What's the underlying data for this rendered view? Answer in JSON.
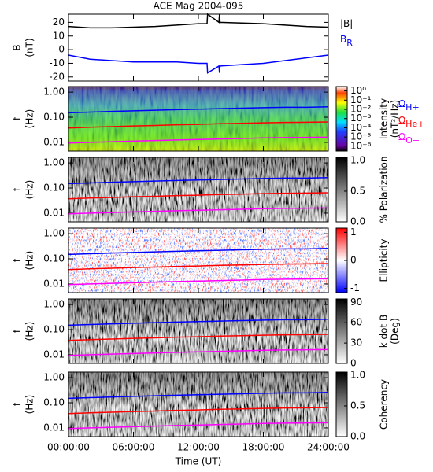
{
  "chart_data": [
    {
      "type": "line",
      "title": "ACE Mag 2004-095",
      "ylabel": "B",
      "ylabel_unit": "(nT)",
      "x": [
        0,
        2,
        4,
        6,
        8,
        10,
        12,
        12.8,
        12.85,
        13.9,
        13.95,
        14,
        16,
        18,
        20,
        22,
        24
      ],
      "xlim": [
        0,
        24
      ],
      "xticks": [
        0,
        6,
        12,
        18,
        24
      ],
      "ylim": [
        -23,
        26
      ],
      "yticks": [
        -20,
        -10,
        0,
        10,
        20
      ],
      "series": [
        {
          "name": "|B|",
          "color": "#000000",
          "values": [
            17,
            16,
            16,
            16.5,
            17,
            18,
            19,
            19,
            26,
            20,
            26,
            20,
            19.5,
            19,
            18,
            17,
            16.5
          ]
        },
        {
          "name": "B",
          "subscript": "R",
          "color": "#0000ff",
          "values": [
            -4,
            -7,
            -8,
            -9,
            -9,
            -9,
            -10,
            -10,
            -17,
            -12,
            -17,
            -12,
            -11,
            -10,
            -8,
            -6,
            -4
          ]
        }
      ]
    },
    {
      "type": "spectrogram",
      "ylabel": "f",
      "ylabel_unit": "(Hz)",
      "ylog": true,
      "ylim": [
        0.0045,
        1.67
      ],
      "yticks": [
        {
          "value": 1,
          "label": "1.00"
        },
        {
          "value": 0.1,
          "label": "0.10"
        },
        0.01
      ],
      "xlim": [
        0,
        24
      ],
      "xticks": [
        0,
        6,
        12,
        18,
        24
      ],
      "x": [
        0,
        2,
        4,
        6,
        8,
        10,
        12,
        14,
        16,
        18,
        20,
        22,
        24
      ],
      "colormap": "rainbow",
      "colorbar_label": "Intensity",
      "colorbar_unit": "(nT²/Hz)",
      "clog": true,
      "clim": [
        3e-07,
        3
      ],
      "cticks": [
        {
          "value": 1,
          "label": "10⁰"
        },
        {
          "value": 0.1,
          "label": "10⁻¹"
        },
        {
          "value": 0.01,
          "label": "10⁻²"
        },
        {
          "value": 0.001,
          "label": "10⁻³"
        },
        {
          "value": 0.0001,
          "label": "10⁻⁴"
        },
        {
          "value": 1e-05,
          "label": "10⁻⁵"
        },
        {
          "value": 1e-06,
          "label": "10⁻⁶"
        }
      ],
      "series": [
        {
          "name": "Ω",
          "subscript": "H+",
          "color": "#0000ff",
          "values": [
            0.15,
            0.16,
            0.17,
            0.18,
            0.19,
            0.2,
            0.21,
            0.22,
            0.23,
            0.24,
            0.25,
            0.25,
            0.26
          ]
        },
        {
          "name": "Ω",
          "subscript": "He+",
          "color": "#ff0000",
          "values": [
            0.037,
            0.04,
            0.042,
            0.045,
            0.047,
            0.05,
            0.052,
            0.055,
            0.057,
            0.06,
            0.062,
            0.063,
            0.065
          ]
        },
        {
          "name": "Ω",
          "subscript": "O+",
          "color": "#ff00ff",
          "values": [
            0.0094,
            0.01,
            0.0106,
            0.0112,
            0.0118,
            0.0125,
            0.013,
            0.0137,
            0.0143,
            0.015,
            0.0155,
            0.0157,
            0.016
          ]
        }
      ]
    },
    {
      "type": "spectrogram",
      "ylabel": "f",
      "ylabel_unit": "(Hz)",
      "ylog": true,
      "ylim": [
        0.0045,
        1.67
      ],
      "yticks": [
        {
          "value": 1,
          "label": "1.00"
        },
        {
          "value": 0.1,
          "label": "0.10"
        },
        0.01
      ],
      "xlim": [
        0,
        24
      ],
      "xticks": [
        0,
        6,
        12,
        18,
        24
      ],
      "x": [
        0,
        2,
        4,
        6,
        8,
        10,
        12,
        14,
        16,
        18,
        20,
        22,
        24
      ],
      "colormap": "gray",
      "colorbar_label": "% Polarization",
      "clim": [
        0,
        1.05
      ],
      "cticks": [
        {
          "value": 0,
          "label": "0.0"
        },
        0.5,
        {
          "value": 1,
          "label": "1.0"
        }
      ],
      "series": [
        {
          "color": "#0000ff",
          "values": [
            0.15,
            0.16,
            0.17,
            0.18,
            0.19,
            0.2,
            0.21,
            0.22,
            0.23,
            0.24,
            0.25,
            0.25,
            0.26
          ]
        },
        {
          "color": "#ff0000",
          "values": [
            0.037,
            0.04,
            0.042,
            0.045,
            0.047,
            0.05,
            0.052,
            0.055,
            0.057,
            0.06,
            0.062,
            0.063,
            0.065
          ]
        },
        {
          "color": "#ff00ff",
          "values": [
            0.0094,
            0.01,
            0.0106,
            0.0112,
            0.0118,
            0.0125,
            0.013,
            0.0137,
            0.0143,
            0.015,
            0.0155,
            0.0157,
            0.016
          ]
        }
      ]
    },
    {
      "type": "spectrogram",
      "ylabel": "f",
      "ylabel_unit": "(Hz)",
      "ylog": true,
      "ylim": [
        0.0045,
        1.67
      ],
      "yticks": [
        {
          "value": 1,
          "label": "1.00"
        },
        {
          "value": 0.1,
          "label": "0.10"
        },
        0.01
      ],
      "xlim": [
        0,
        24
      ],
      "xticks": [
        0,
        6,
        12,
        18,
        24
      ],
      "x": [
        0,
        2,
        4,
        6,
        8,
        10,
        12,
        14,
        16,
        18,
        20,
        22,
        24
      ],
      "colormap": "bwr",
      "colorbar_label": "Ellipticity",
      "clim": [
        -1.15,
        1.15
      ],
      "cticks": [
        1,
        0,
        -1
      ],
      "series": [
        {
          "color": "#0000ff",
          "values": [
            0.15,
            0.16,
            0.17,
            0.18,
            0.19,
            0.2,
            0.21,
            0.22,
            0.23,
            0.24,
            0.25,
            0.25,
            0.26
          ]
        },
        {
          "color": "#ff0000",
          "values": [
            0.037,
            0.04,
            0.042,
            0.045,
            0.047,
            0.05,
            0.052,
            0.055,
            0.057,
            0.06,
            0.062,
            0.063,
            0.065
          ]
        },
        {
          "color": "#ff00ff",
          "values": [
            0.0094,
            0.01,
            0.0106,
            0.0112,
            0.0118,
            0.0125,
            0.013,
            0.0137,
            0.0143,
            0.015,
            0.0155,
            0.0157,
            0.016
          ]
        }
      ]
    },
    {
      "type": "spectrogram",
      "ylabel": "f",
      "ylabel_unit": "(Hz)",
      "ylog": true,
      "ylim": [
        0.0045,
        1.67
      ],
      "yticks": [
        {
          "value": 1,
          "label": "1.00"
        },
        {
          "value": 0.1,
          "label": "0.10"
        },
        0.01
      ],
      "xlim": [
        0,
        24
      ],
      "xticks": [
        0,
        6,
        12,
        18,
        24
      ],
      "x": [
        0,
        2,
        4,
        6,
        8,
        10,
        12,
        14,
        16,
        18,
        20,
        22,
        24
      ],
      "colormap": "gray",
      "colorbar_label": "k dot B",
      "colorbar_unit": "(Deg)",
      "clim": [
        0,
        95
      ],
      "cticks": [
        0,
        30,
        60,
        90
      ],
      "series": [
        {
          "color": "#0000ff",
          "values": [
            0.15,
            0.16,
            0.17,
            0.18,
            0.19,
            0.2,
            0.21,
            0.22,
            0.23,
            0.24,
            0.25,
            0.25,
            0.26
          ]
        },
        {
          "color": "#ff0000",
          "values": [
            0.037,
            0.04,
            0.042,
            0.045,
            0.047,
            0.05,
            0.052,
            0.055,
            0.057,
            0.06,
            0.062,
            0.063,
            0.065
          ]
        },
        {
          "color": "#ff00ff",
          "values": [
            0.0094,
            0.01,
            0.0106,
            0.0112,
            0.0118,
            0.0125,
            0.013,
            0.0137,
            0.0143,
            0.015,
            0.0155,
            0.0157,
            0.016
          ]
        }
      ]
    },
    {
      "type": "spectrogram",
      "ylabel": "f",
      "ylabel_unit": "(Hz)",
      "ylog": true,
      "ylim": [
        0.0045,
        1.67
      ],
      "yticks": [
        {
          "value": 1,
          "label": "1.00"
        },
        {
          "value": 0.1,
          "label": "0.10"
        },
        0.01
      ],
      "xlim": [
        0,
        24
      ],
      "xticks": [
        {
          "value": 0,
          "label": "00:00:00"
        },
        {
          "value": 6,
          "label": "06:00:00"
        },
        {
          "value": 12,
          "label": "12:00:00"
        },
        {
          "value": 18,
          "label": "18:00:00"
        },
        {
          "value": 24,
          "label": "24:00:00"
        }
      ],
      "xlabel": "Time (UT)",
      "x": [
        0,
        2,
        4,
        6,
        8,
        10,
        12,
        14,
        16,
        18,
        20,
        22,
        24
      ],
      "colormap": "gray",
      "colorbar_label": "Coherency",
      "clim": [
        0,
        1.05
      ],
      "cticks": [
        {
          "value": 0,
          "label": "0.0"
        },
        0.5,
        {
          "value": 1,
          "label": "1.0"
        }
      ],
      "series": [
        {
          "color": "#0000ff",
          "values": [
            0.15,
            0.16,
            0.17,
            0.18,
            0.19,
            0.2,
            0.21,
            0.22,
            0.23,
            0.24,
            0.25,
            0.25,
            0.26
          ]
        },
        {
          "color": "#ff0000",
          "values": [
            0.037,
            0.04,
            0.042,
            0.045,
            0.047,
            0.05,
            0.052,
            0.055,
            0.057,
            0.06,
            0.062,
            0.063,
            0.065
          ]
        },
        {
          "color": "#ff00ff",
          "values": [
            0.0094,
            0.01,
            0.0106,
            0.0112,
            0.0118,
            0.0125,
            0.013,
            0.0137,
            0.0143,
            0.015,
            0.0155,
            0.0157,
            0.016
          ]
        }
      ]
    }
  ]
}
